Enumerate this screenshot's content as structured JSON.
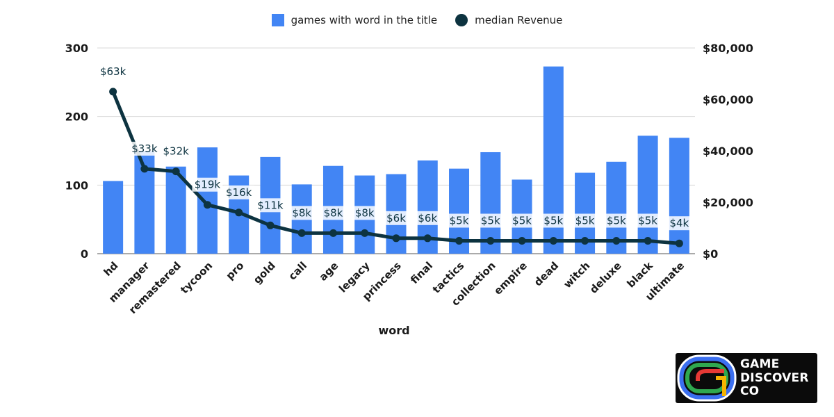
{
  "legend": {
    "bar_label": "games with word in the title",
    "line_label": "median Revenue"
  },
  "colors": {
    "bar": "#4285f4",
    "line": "#0d3340",
    "grid": "#d9d9d9",
    "text": "#1a1a1a"
  },
  "chart_data": {
    "type": "bar",
    "xlabel": "word",
    "categories": [
      "hd",
      "manager",
      "remastered",
      "tycoon",
      "pro",
      "gold",
      "call",
      "age",
      "legacy",
      "princess",
      "final",
      "tactics",
      "collection",
      "empire",
      "dead",
      "witch",
      "deluxe",
      "black",
      "ultimate"
    ],
    "y_left": {
      "ylim": [
        0,
        300
      ],
      "ticks": [
        "0",
        "100",
        "200",
        "300"
      ]
    },
    "y_right": {
      "ylim": [
        0,
        80000
      ],
      "ticks": [
        "$0",
        "$20,000",
        "$40,000",
        "$60,000",
        "$80,000"
      ]
    },
    "grid": true,
    "legend_position": "top-center",
    "series": [
      {
        "name": "games with word in the title",
        "type": "bar",
        "axis": "left",
        "values": [
          106,
          150,
          127,
          155,
          114,
          141,
          101,
          128,
          114,
          116,
          136,
          124,
          148,
          108,
          273,
          118,
          134,
          172,
          169
        ]
      },
      {
        "name": "median Revenue",
        "type": "line",
        "axis": "right",
        "values": [
          63000,
          33000,
          32000,
          19000,
          16000,
          11000,
          8000,
          8000,
          8000,
          6000,
          6000,
          5000,
          5000,
          5000,
          5000,
          5000,
          5000,
          5000,
          4000
        ],
        "labels": [
          "$63k",
          "$33k",
          "$32k",
          "$19k",
          "$16k",
          "$11k",
          "$8k",
          "$8k",
          "$8k",
          "$6k",
          "$6k",
          "$5k",
          "$5k",
          "$5k",
          "$5k",
          "$5k",
          "$5k",
          "$5k",
          "$4k"
        ]
      }
    ]
  },
  "logo": {
    "line1": "GAME",
    "line2": "DISCOVER",
    "line3": "CO"
  }
}
